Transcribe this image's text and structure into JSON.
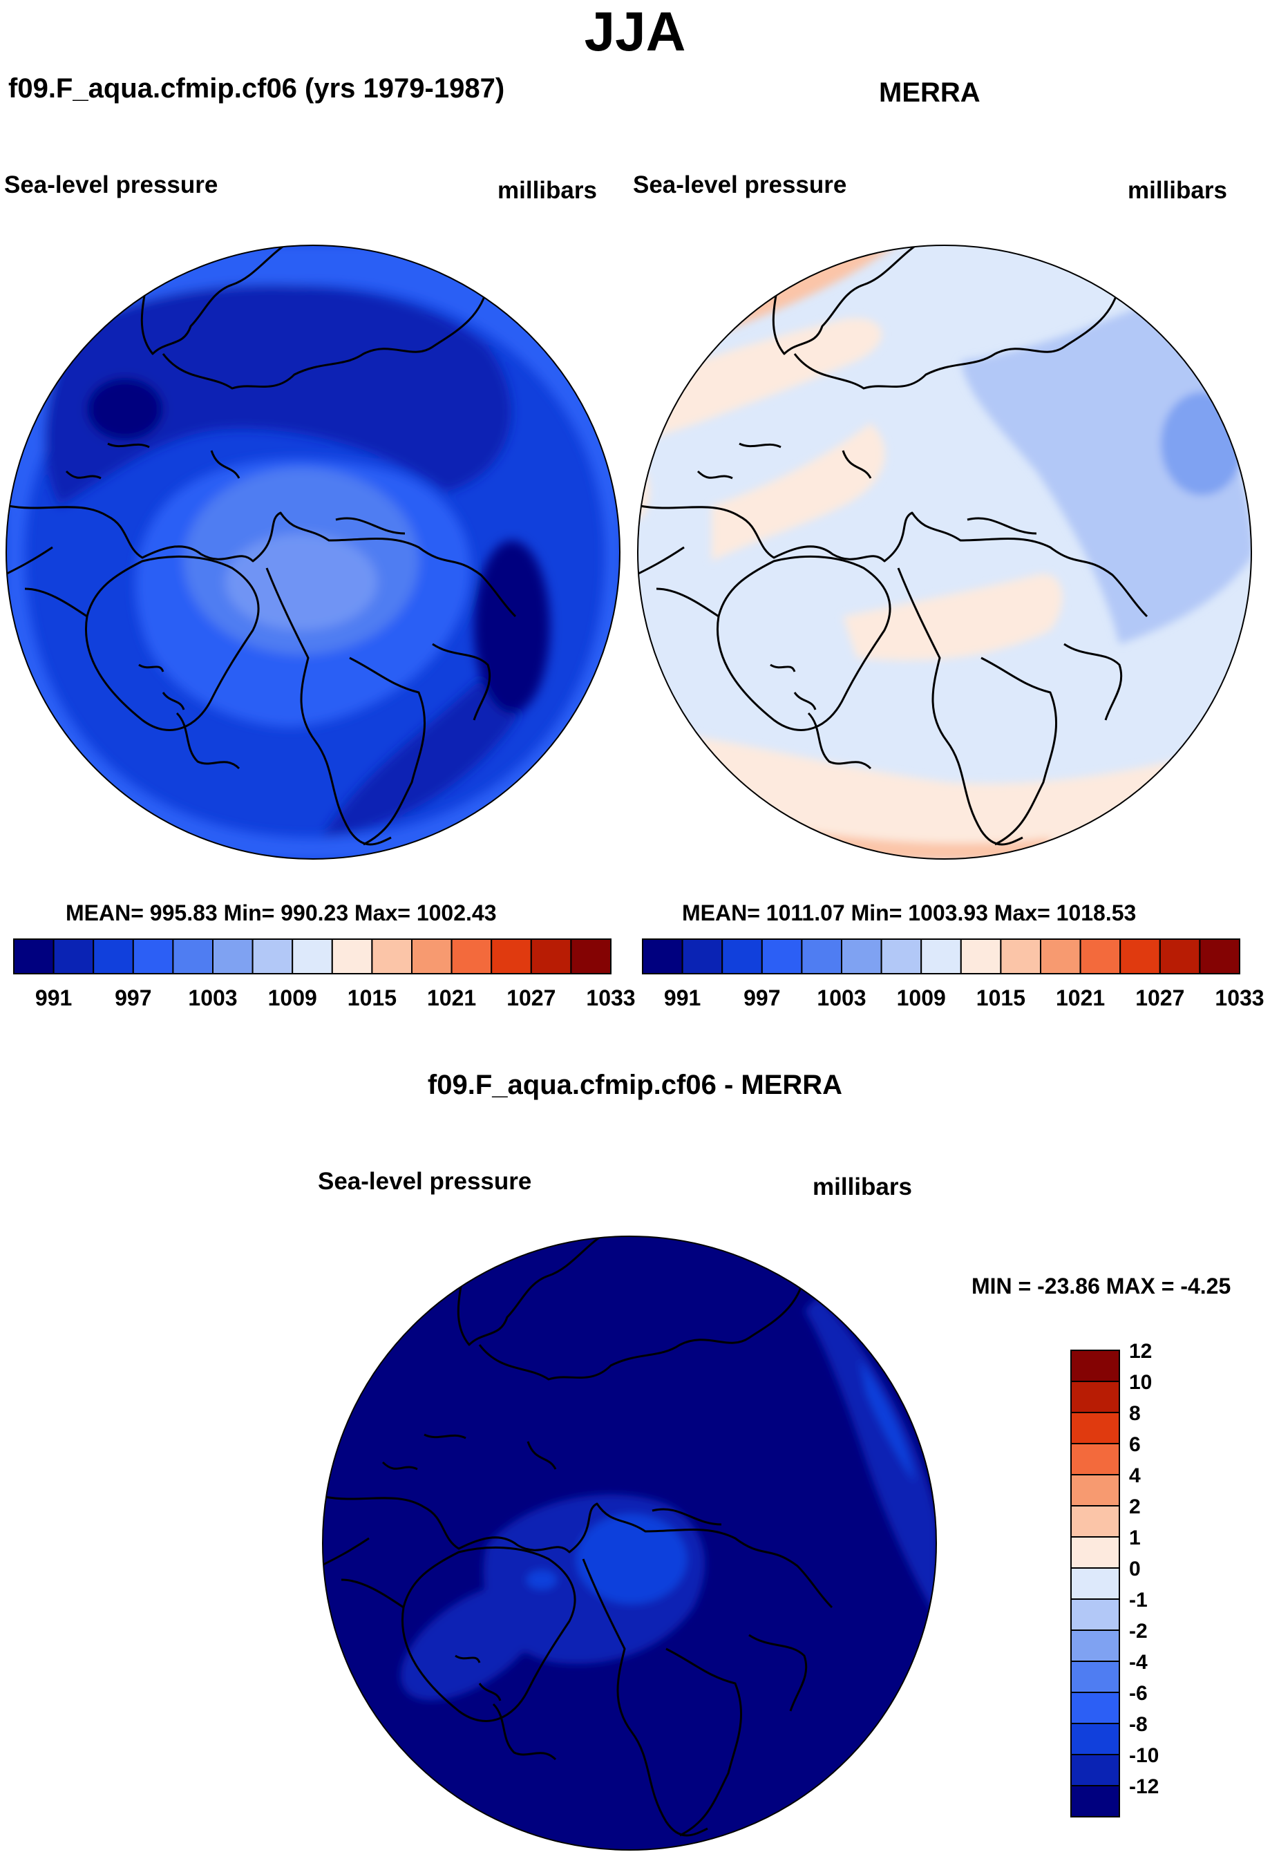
{
  "season": "JJA",
  "panels": {
    "model": {
      "title": "f09.F_aqua.cfmip.cf06 (yrs 1979-1987)",
      "variable": "Sea-level pressure",
      "units": "millibars",
      "stats": "MEAN= 995.83  Min= 990.23  Max= 1002.43"
    },
    "obs": {
      "title": "MERRA",
      "variable": "Sea-level pressure",
      "units": "millibars",
      "stats": "MEAN= 1011.07  Min= 1003.93  Max= 1018.53"
    },
    "diff": {
      "title": "f09.F_aqua.cfmip.cf06 - MERRA",
      "variable": "Sea-level pressure",
      "units": "millibars",
      "stats": "MIN = -23.86 MAX =  -4.25"
    }
  },
  "colorbar_abs": {
    "colors": [
      "#00007f",
      "#0a23b4",
      "#1140dc",
      "#2c5ff5",
      "#4f7df2",
      "#7fa2f2",
      "#b2c8f7",
      "#dde9fb",
      "#fdeade",
      "#fbc5a8",
      "#f79a70",
      "#f36a3c",
      "#e03a0f",
      "#b81c04",
      "#840303"
    ],
    "labels": [
      "991",
      "997",
      "1003",
      "1009",
      "1015",
      "1021",
      "1027",
      "1033"
    ]
  },
  "colorbar_diff": {
    "colors": [
      "#00007f",
      "#0a23b4",
      "#1140dc",
      "#2c5ff5",
      "#4f7df2",
      "#7fa2f2",
      "#b2c8f7",
      "#dde9fb",
      "#fdeade",
      "#fbc5a8",
      "#f79a70",
      "#f36a3c",
      "#e03a0f",
      "#b81c04",
      "#840303"
    ],
    "labels": [
      "-12",
      "-10",
      "-8",
      "-6",
      "-4",
      "-2",
      "-1",
      "0",
      "1",
      "2",
      "4",
      "6",
      "8",
      "10",
      "12"
    ]
  }
}
